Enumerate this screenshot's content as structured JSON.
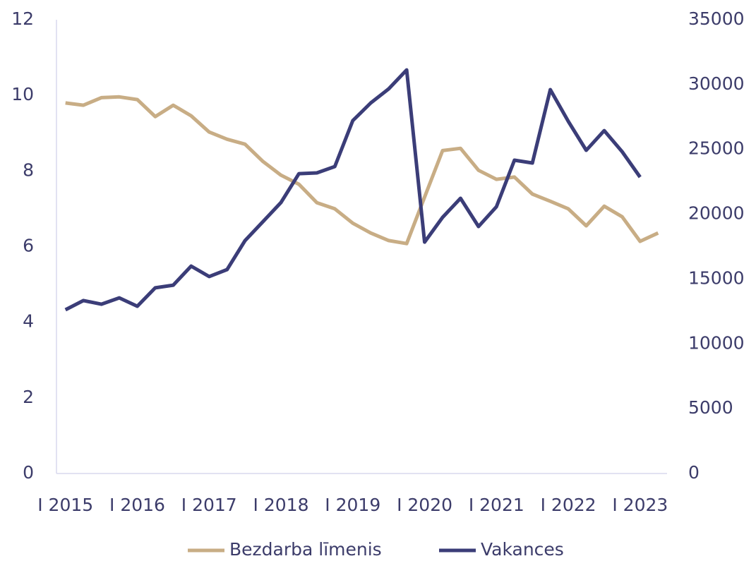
{
  "chart_data": {
    "type": "line",
    "categories": [
      "I 2015",
      null,
      null,
      null,
      "I 2016",
      null,
      null,
      null,
      "I 2017",
      null,
      null,
      null,
      "I 2018",
      null,
      null,
      null,
      "I 2019",
      null,
      null,
      null,
      "I 2020",
      null,
      null,
      null,
      "I 2021",
      null,
      null,
      null,
      "I 2022",
      null,
      null,
      null,
      "I 2023",
      null
    ],
    "series": [
      {
        "name": "Bezdarba līmenis",
        "color": "#c8ad85",
        "axis": "y",
        "values": [
          9.8,
          9.74,
          9.94,
          9.96,
          9.89,
          9.44,
          9.74,
          9.46,
          9.03,
          8.84,
          8.71,
          8.25,
          7.89,
          7.65,
          7.16,
          7.0,
          6.62,
          6.36,
          6.16,
          6.08,
          7.31,
          8.54,
          8.6,
          8.02,
          7.78,
          7.84,
          7.39,
          7.2,
          7.0,
          6.55,
          7.07,
          6.79,
          6.14,
          6.36
        ]
      },
      {
        "name": "Vakances",
        "color": "#3b3d78",
        "axis": "y2",
        "values": [
          12630,
          13340,
          13060,
          13550,
          12900,
          14320,
          14530,
          16000,
          15190,
          15730,
          17960,
          19430,
          20900,
          23130,
          23190,
          23680,
          27220,
          28580,
          29670,
          31130,
          17850,
          19760,
          21230,
          19050,
          20580,
          24170,
          23950,
          29610,
          27160,
          24930,
          26450,
          24820,
          22860,
          null
        ]
      }
    ],
    "ylim": [
      0,
      12
    ],
    "yticks": [
      0,
      2,
      4,
      6,
      8,
      10,
      12
    ],
    "y2lim": [
      0,
      35000
    ],
    "y2ticks": [
      0,
      5000,
      10000,
      15000,
      20000,
      25000,
      30000,
      35000
    ],
    "grid": false,
    "legend": "bottom"
  }
}
